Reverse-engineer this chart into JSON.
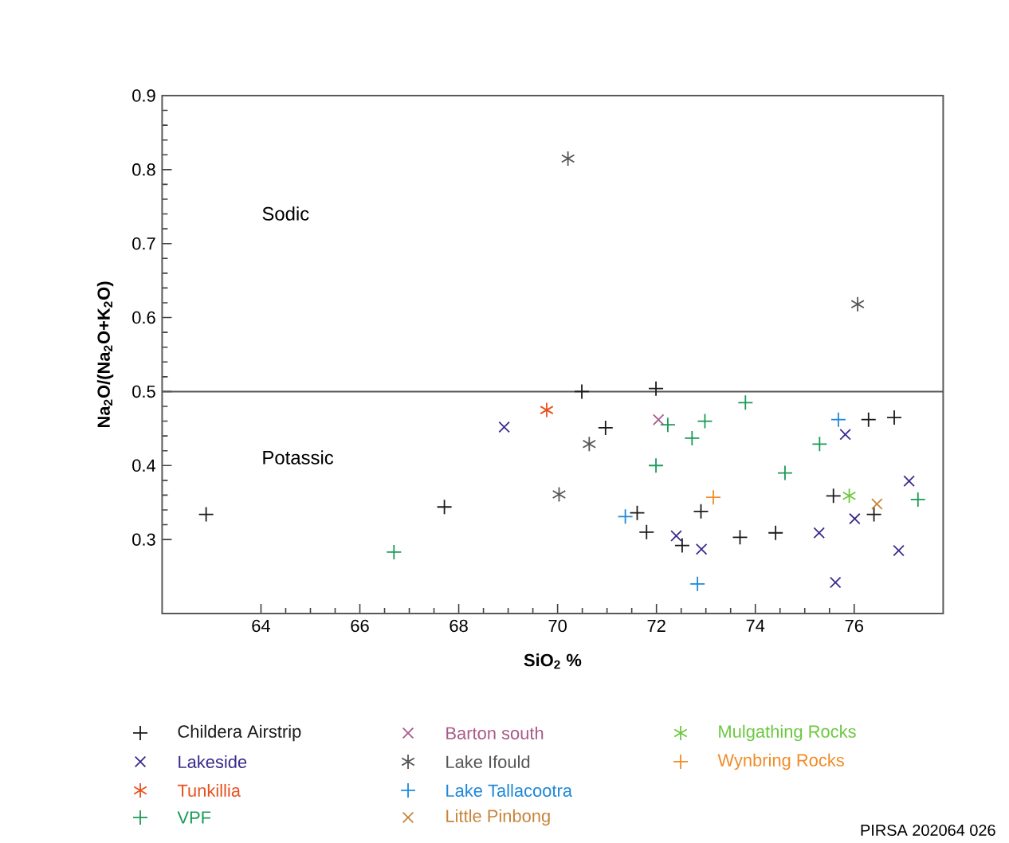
{
  "chart_data": {
    "type": "scatter",
    "xlabel": "SiO$_{2}$ %",
    "ylabel": "Na$_{2}$O/(Na$_{2}$O+K$_{2}$O)",
    "annotations": [
      "Sodic",
      "Potassic",
      "PIRSA 202064 026"
    ],
    "xlim": [
      62,
      77.8
    ],
    "ylim": [
      0.2,
      0.9
    ],
    "xticks": [
      64,
      66,
      68,
      70,
      72,
      74,
      76
    ],
    "yticks": [
      0.3,
      0.4,
      0.5,
      0.6,
      0.7,
      0.8,
      0.9
    ],
    "grid": false,
    "legend": "bottom",
    "ref_lines": [
      {
        "axis": "y",
        "value": 0.5,
        "color": "#555555",
        "line_style": "solid"
      }
    ],
    "series": [
      {
        "name": "Childera Airstrip",
        "color": "#1a1a1a",
        "marker": "plus",
        "x": [
          62.89,
          67.71,
          70.49,
          71.99,
          70.97,
          71.61,
          71.8,
          72.52,
          72.9,
          73.69,
          74.41,
          75.58,
          76.29,
          76.81,
          76.4
        ],
        "values": [
          0.334,
          0.344,
          0.5,
          0.504,
          0.451,
          0.336,
          0.31,
          0.292,
          0.338,
          0.303,
          0.309,
          0.359,
          0.462,
          0.465,
          0.334
        ]
      },
      {
        "name": "Lakeside",
        "color": "#3c2a8c",
        "marker": "cross",
        "x": [
          68.92,
          72.4,
          72.91,
          75.29,
          75.82,
          76.01,
          75.62,
          77.11,
          76.9
        ],
        "values": [
          0.452,
          0.305,
          0.287,
          0.309,
          0.442,
          0.328,
          0.242,
          0.379,
          0.285
        ]
      },
      {
        "name": "Tunkillia",
        "color": "#e8501e",
        "x": [
          69.78
        ],
        "values": [
          0.475
        ]
      },
      {
        "name": "VPF",
        "color": "#1a9a55",
        "marker": "plus",
        "x": [
          66.69,
          73.8,
          72.23,
          72.98,
          72.72,
          71.99,
          74.6,
          75.3,
          77.29
        ],
        "values": [
          0.283,
          0.485,
          0.455,
          0.46,
          0.437,
          0.4,
          0.39,
          0.429,
          0.354
        ]
      },
      {
        "name": "Barton south",
        "color": "#a85a88",
        "marker": "cross",
        "x": [
          72.04
        ],
        "values": [
          0.462
        ]
      },
      {
        "name": "Lake Ifould",
        "color": "#555555",
        "x": [
          70.21,
          70.64,
          70.03,
          76.07
        ],
        "values": [
          0.815,
          0.429,
          0.361,
          0.618
        ]
      },
      {
        "name": "Lake Tallacootra",
        "color": "#1e88d8",
        "marker": "plus",
        "x": [
          71.37,
          72.83,
          75.68
        ],
        "values": [
          0.331,
          0.24,
          0.462
        ]
      },
      {
        "name": "Little Pinbong",
        "color": "#c8843c",
        "marker": "cross",
        "x": [
          76.46
        ],
        "values": [
          0.348
        ]
      },
      {
        "name": "Mulgathing Rocks",
        "color": "#6cc840",
        "x": [
          75.9
        ],
        "values": [
          0.359
        ]
      },
      {
        "name": "Wynbring Rocks",
        "color": "#f08c28",
        "marker": "plus",
        "x": [
          73.15
        ],
        "values": [
          0.357
        ]
      }
    ]
  }
}
